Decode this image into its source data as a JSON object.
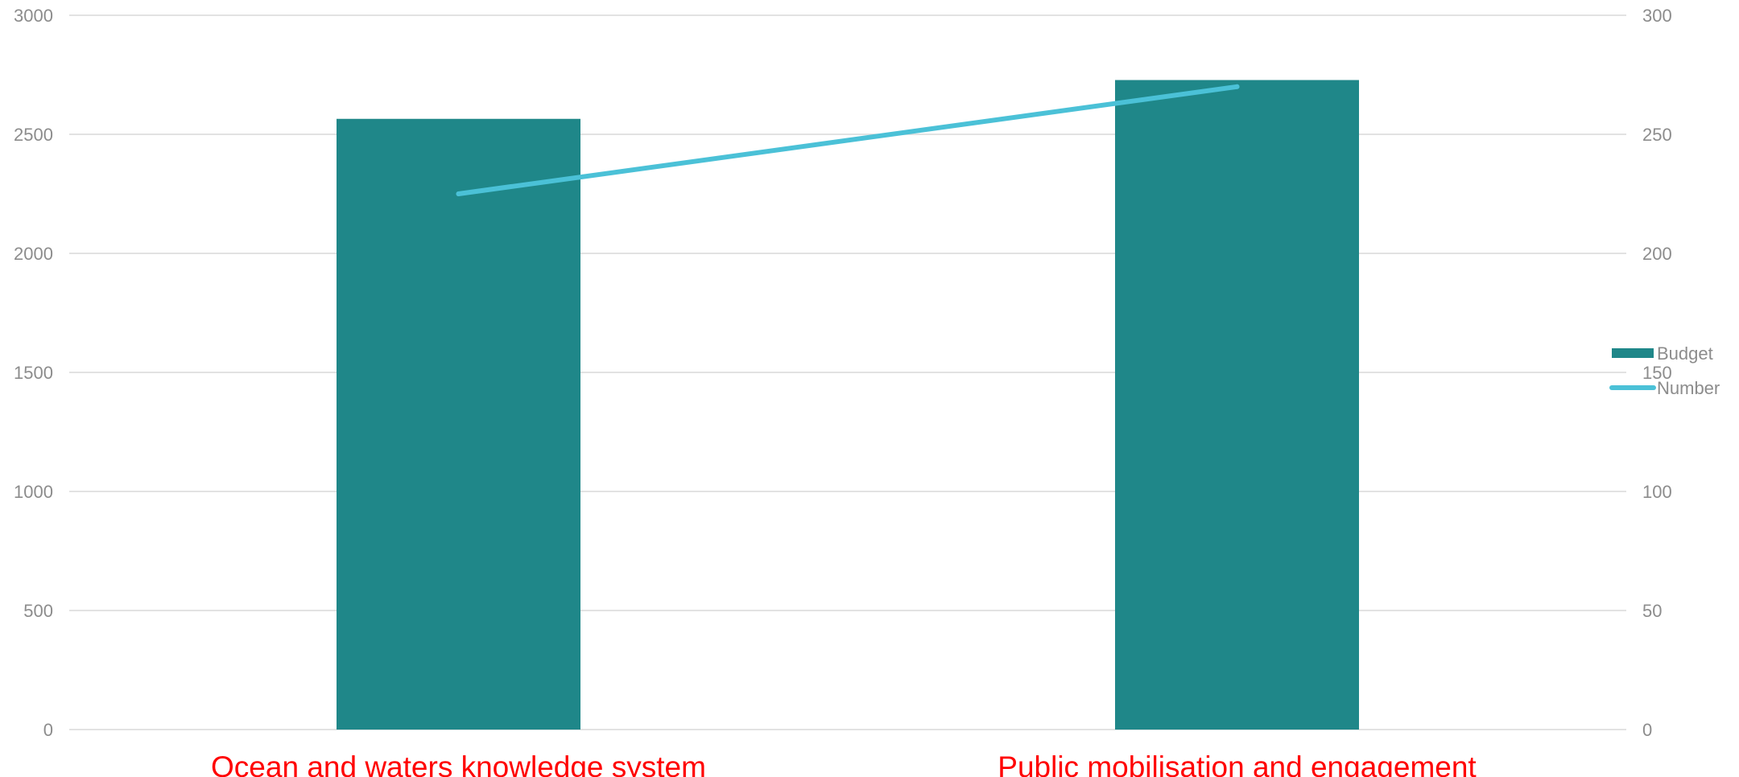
{
  "chart_data": {
    "type": "bar",
    "categories": [
      "Ocean and waters knowledge system",
      "Public mobilisation and engagement"
    ],
    "series": [
      {
        "name": "Budget",
        "type": "bar",
        "axis": "left",
        "values": [
          2565,
          2728
        ],
        "color": "#1f8789"
      },
      {
        "name": "Number",
        "type": "line",
        "axis": "right",
        "values": [
          225,
          270
        ],
        "color": "#4bc1d7"
      }
    ],
    "y_left": {
      "min": 0,
      "max": 3000,
      "ticks": [
        "0",
        "500",
        "1000",
        "1500",
        "2000",
        "2500",
        "3000"
      ]
    },
    "y_right": {
      "min": 0,
      "max": 300,
      "ticks": [
        "0",
        "50",
        "100",
        "150",
        "200",
        "250",
        "300"
      ]
    },
    "grid": true,
    "legend_position": "right",
    "category_label_color": "#ff0000"
  }
}
